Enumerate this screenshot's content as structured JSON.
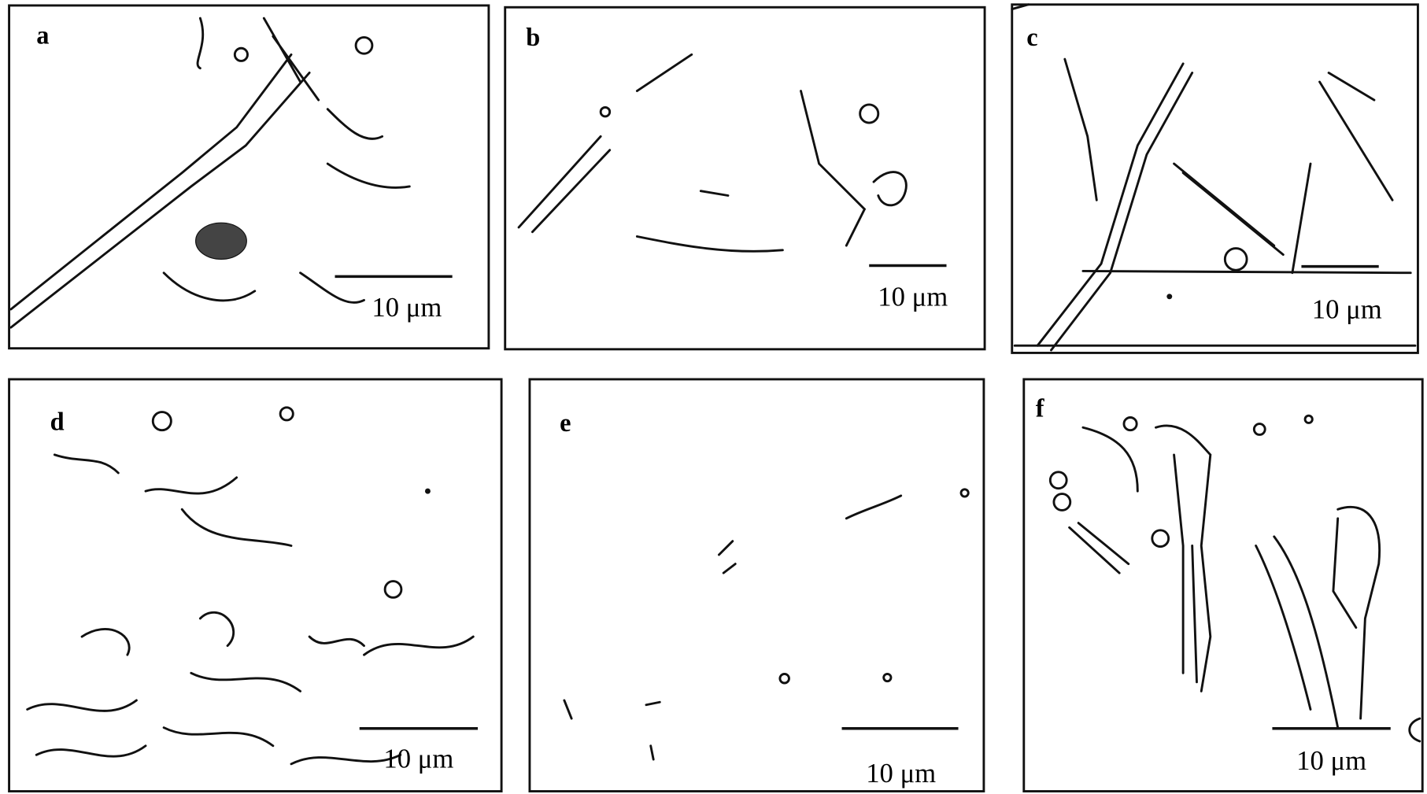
{
  "panels": [
    {
      "label": "a",
      "scale_bar": "10 μm"
    },
    {
      "label": "b",
      "scale_bar": "10 μm"
    },
    {
      "label": "c",
      "scale_bar": "10 μm"
    },
    {
      "label": "d",
      "scale_bar": "10 μm"
    },
    {
      "label": "e",
      "scale_bar": "10 μm"
    },
    {
      "label": "f",
      "scale_bar": "10 μm"
    }
  ]
}
